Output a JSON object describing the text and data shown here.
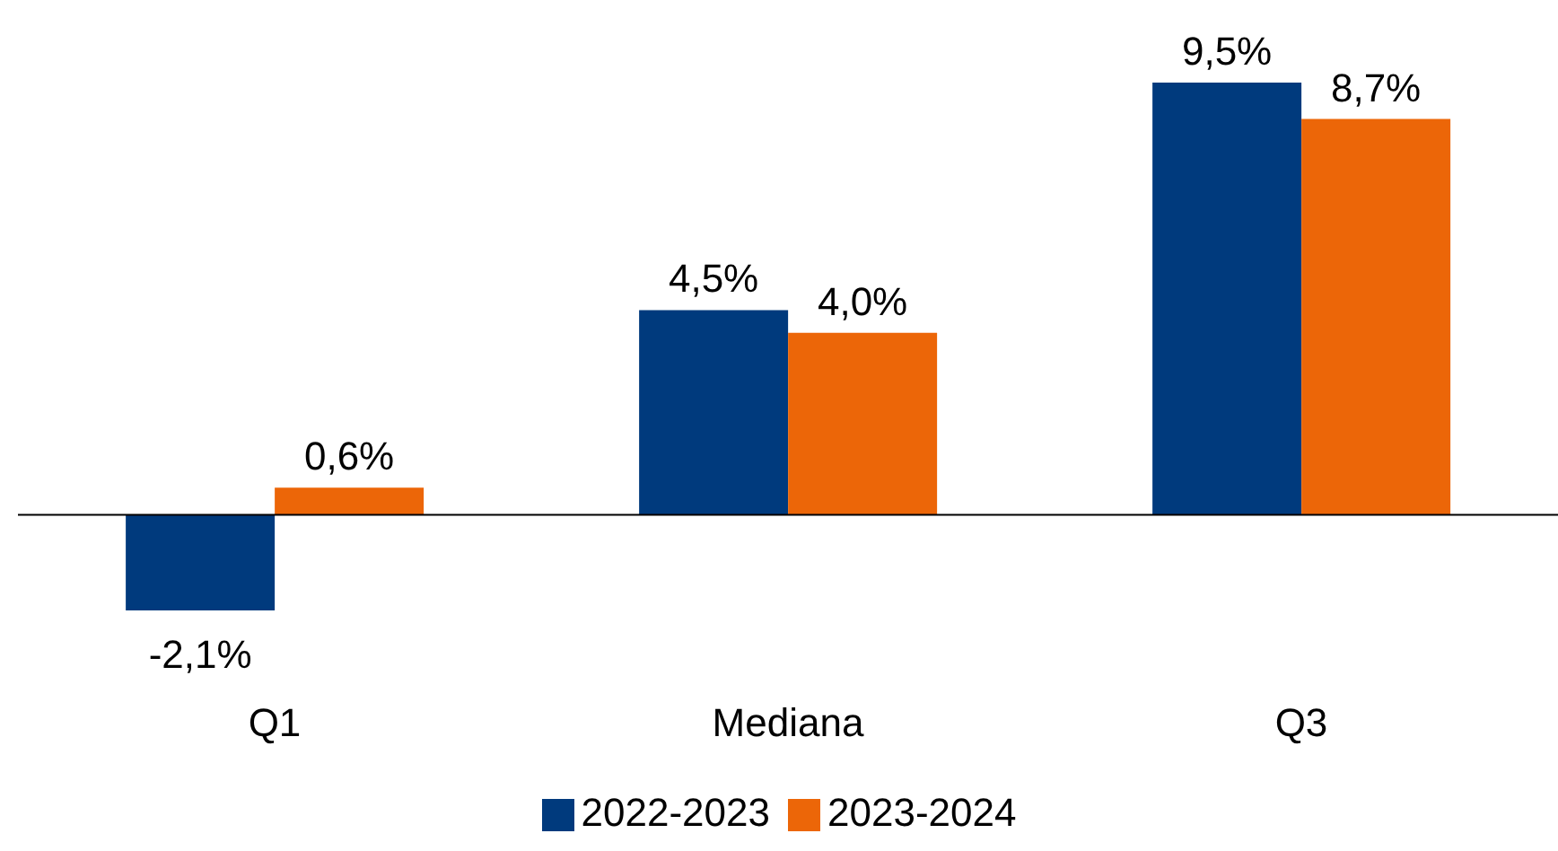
{
  "chart_data": {
    "type": "bar",
    "categories": [
      "Q1",
      "Mediana",
      "Q3"
    ],
    "series": [
      {
        "name": "2022-2023",
        "color": "#003a7d",
        "values": [
          -2.1,
          4.5,
          9.5
        ],
        "value_labels": [
          "-2,1%",
          "4,5%",
          "9,5%"
        ]
      },
      {
        "name": "2023-2024",
        "color": "#ec6608",
        "values": [
          0.6,
          4.0,
          8.7
        ],
        "value_labels": [
          "0,6%",
          "4,0%",
          "8,7%"
        ]
      }
    ],
    "legend": "bottom",
    "grid": false
  }
}
